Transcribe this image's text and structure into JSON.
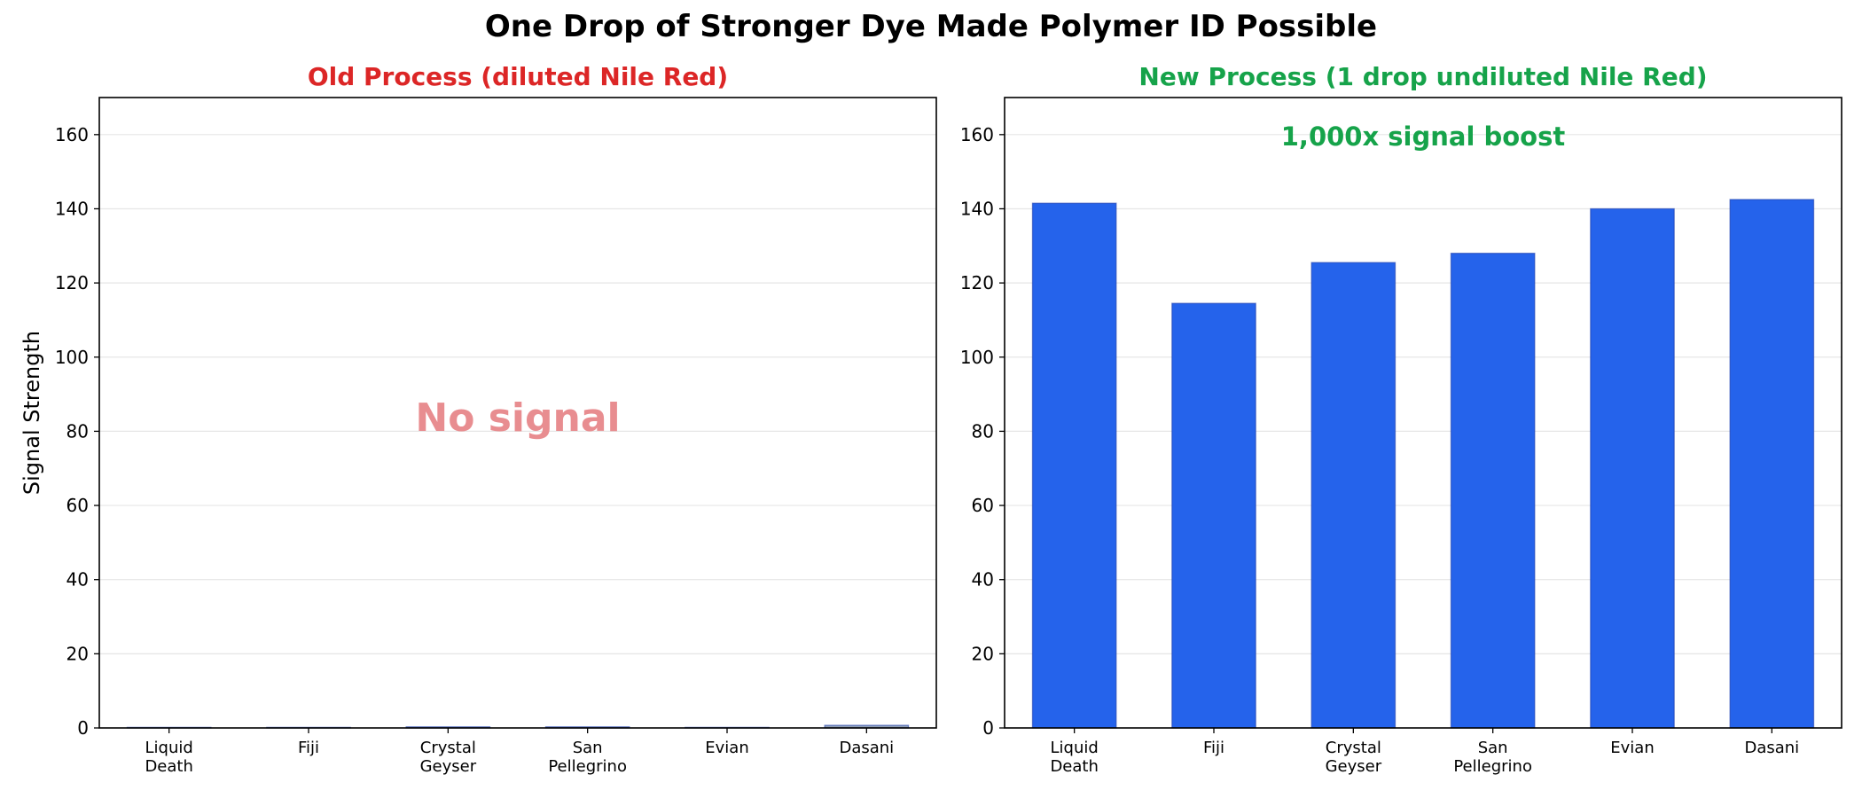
{
  "figure": {
    "title": "One Drop of Stronger Dye Made Polymer ID Possible"
  },
  "chart_data": [
    {
      "type": "bar",
      "title": "Old Process (diluted Nile Red)",
      "title_color": "#dc2626",
      "ylabel": "Signal Strength",
      "xlabel": "",
      "categories": [
        "Liquid Death",
        "Fiji",
        "Crystal Geyser",
        "San Pellegrino",
        "Evian",
        "Dasani"
      ],
      "tick_labels": [
        [
          "Liquid",
          "Death"
        ],
        [
          "Fiji"
        ],
        [
          "Crystal",
          "Geyser"
        ],
        [
          "San",
          "Pellegrino"
        ],
        [
          "Evian"
        ],
        [
          "Dasani"
        ]
      ],
      "values": [
        0.15,
        0.15,
        0.3,
        0.3,
        0.15,
        0.7
      ],
      "ylim": [
        0,
        170
      ],
      "yticks": [
        0,
        20,
        40,
        60,
        80,
        100,
        120,
        140,
        160
      ],
      "grid": "y",
      "bar_color": "#94a3b8",
      "annotation": {
        "text": "No signal",
        "color": "#e88d90"
      }
    },
    {
      "type": "bar",
      "title": "New Process (1 drop undiluted Nile Red)",
      "title_color": "#16a34a",
      "ylabel": "",
      "xlabel": "",
      "categories": [
        "Liquid Death",
        "Fiji",
        "Crystal Geyser",
        "San Pellegrino",
        "Evian",
        "Dasani"
      ],
      "tick_labels": [
        [
          "Liquid",
          "Death"
        ],
        [
          "Fiji"
        ],
        [
          "Crystal",
          "Geyser"
        ],
        [
          "San",
          "Pellegrino"
        ],
        [
          "Evian"
        ],
        [
          "Dasani"
        ]
      ],
      "values": [
        141.5,
        114.5,
        125.5,
        128,
        140,
        142.5
      ],
      "ylim": [
        0,
        170
      ],
      "yticks": [
        0,
        20,
        40,
        60,
        80,
        100,
        120,
        140,
        160
      ],
      "grid": "y",
      "bar_color": "#2563eb",
      "annotation": {
        "text": "1,000x signal boost",
        "color": "#16a34a"
      }
    }
  ]
}
